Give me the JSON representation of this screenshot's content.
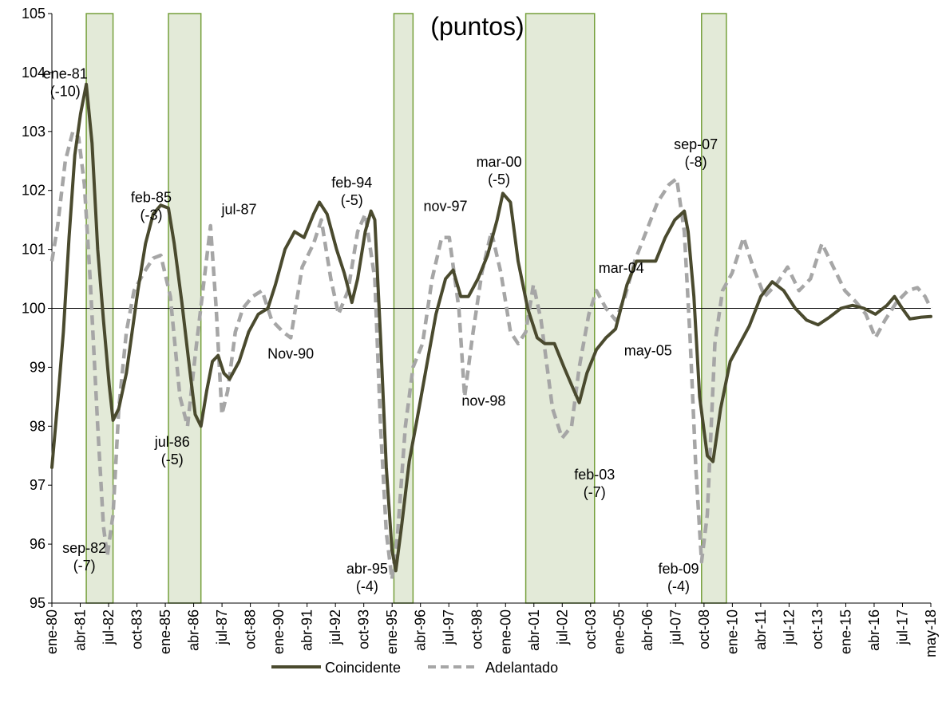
{
  "chart_data": {
    "type": "line",
    "title": "(puntos)",
    "ylim": [
      95,
      105
    ],
    "yticks": [
      "95",
      "96",
      "97",
      "98",
      "99",
      "100",
      "101",
      "102",
      "103",
      "104",
      "105"
    ],
    "x_start": "1980-01",
    "x_end": "2018-05",
    "xtick_labels": [
      "ene-80",
      "abr-81",
      "jul-82",
      "oct-83",
      "ene-85",
      "abr-86",
      "jul-87",
      "oct-88",
      "ene-90",
      "abr-91",
      "jul-92",
      "oct-93",
      "ene-95",
      "abr-96",
      "jul-97",
      "oct-98",
      "ene-00",
      "abr-01",
      "jul-02",
      "oct-03",
      "ene-05",
      "abr-06",
      "jul-07",
      "oct-08",
      "ene-10",
      "abr-11",
      "jul-12",
      "oct-13",
      "ene-15",
      "abr-16",
      "jul-17",
      "may-18"
    ],
    "reference_line": 100,
    "recession_bands": [
      [
        "1981-07",
        "1982-09"
      ],
      [
        "1985-02",
        "1986-07"
      ],
      [
        "1994-12",
        "1995-10"
      ],
      [
        "2000-09",
        "2003-09"
      ],
      [
        "2008-05",
        "2009-06"
      ]
    ],
    "colors": {
      "coincidente": "#4a4a2e",
      "adelantado": "#a6a6a6",
      "band_fill": "#e3ead8",
      "band_stroke": "#76a03c"
    },
    "series": [
      {
        "name": "Coincidente",
        "style": "solid",
        "points": [
          [
            "1980-01",
            97.3
          ],
          [
            "1980-04",
            98.4
          ],
          [
            "1980-07",
            99.6
          ],
          [
            "1980-10",
            101.2
          ],
          [
            "1981-01",
            102.6
          ],
          [
            "1981-04",
            103.3
          ],
          [
            "1981-07",
            103.8
          ],
          [
            "1981-10",
            102.8
          ],
          [
            "1982-01",
            101.0
          ],
          [
            "1982-04",
            99.8
          ],
          [
            "1982-07",
            98.7
          ],
          [
            "1982-09",
            98.1
          ],
          [
            "1982-12",
            98.3
          ],
          [
            "1983-04",
            98.9
          ],
          [
            "1983-07",
            99.6
          ],
          [
            "1983-10",
            100.3
          ],
          [
            "1984-02",
            101.1
          ],
          [
            "1984-06",
            101.6
          ],
          [
            "1984-10",
            101.75
          ],
          [
            "1985-02",
            101.7
          ],
          [
            "1985-05",
            101.1
          ],
          [
            "1985-09",
            100.1
          ],
          [
            "1986-01",
            99.0
          ],
          [
            "1986-04",
            98.2
          ],
          [
            "1986-07",
            98.0
          ],
          [
            "1986-10",
            98.6
          ],
          [
            "1987-01",
            99.1
          ],
          [
            "1987-04",
            99.2
          ],
          [
            "1987-07",
            98.9
          ],
          [
            "1987-10",
            98.8
          ],
          [
            "1988-03",
            99.1
          ],
          [
            "1988-08",
            99.6
          ],
          [
            "1989-01",
            99.9
          ],
          [
            "1989-06",
            100.0
          ],
          [
            "1989-10",
            100.4
          ],
          [
            "1990-03",
            101.0
          ],
          [
            "1990-08",
            101.3
          ],
          [
            "1991-01",
            101.2
          ],
          [
            "1991-06",
            101.6
          ],
          [
            "1991-09",
            101.8
          ],
          [
            "1992-01",
            101.6
          ],
          [
            "1992-06",
            101.0
          ],
          [
            "1992-10",
            100.6
          ],
          [
            "1993-02",
            100.1
          ],
          [
            "1993-05",
            100.5
          ],
          [
            "1993-09",
            101.3
          ],
          [
            "1993-12",
            101.65
          ],
          [
            "1994-02",
            101.5
          ],
          [
            "1994-05",
            99.5
          ],
          [
            "1994-08",
            97.3
          ],
          [
            "1994-11",
            95.9
          ],
          [
            "1995-01",
            95.55
          ],
          [
            "1995-04",
            96.3
          ],
          [
            "1995-08",
            97.4
          ],
          [
            "1995-12",
            98.1
          ],
          [
            "1996-05",
            99.0
          ],
          [
            "1996-10",
            99.9
          ],
          [
            "1997-03",
            100.5
          ],
          [
            "1997-07",
            100.65
          ],
          [
            "1997-11",
            100.2
          ],
          [
            "1998-03",
            100.2
          ],
          [
            "1998-08",
            100.5
          ],
          [
            "1999-01",
            100.9
          ],
          [
            "1999-06",
            101.5
          ],
          [
            "1999-09",
            101.95
          ],
          [
            "2000-01",
            101.8
          ],
          [
            "2000-05",
            100.8
          ],
          [
            "2000-10",
            100.0
          ],
          [
            "2001-03",
            99.5
          ],
          [
            "2001-07",
            99.4
          ],
          [
            "2001-12",
            99.4
          ],
          [
            "2002-05",
            99.0
          ],
          [
            "2002-09",
            98.7
          ],
          [
            "2003-01",
            98.4
          ],
          [
            "2003-05",
            98.9
          ],
          [
            "2003-10",
            99.3
          ],
          [
            "2004-03",
            99.5
          ],
          [
            "2004-08",
            99.65
          ],
          [
            "2005-02",
            100.4
          ],
          [
            "2005-07",
            100.8
          ],
          [
            "2005-12",
            100.8
          ],
          [
            "2006-05",
            100.8
          ],
          [
            "2006-10",
            101.2
          ],
          [
            "2007-03",
            101.5
          ],
          [
            "2007-08",
            101.65
          ],
          [
            "2007-10",
            101.3
          ],
          [
            "2008-01",
            100.2
          ],
          [
            "2008-04",
            98.5
          ],
          [
            "2008-08",
            97.5
          ],
          [
            "2008-11",
            97.4
          ],
          [
            "2009-03",
            98.3
          ],
          [
            "2009-08",
            99.1
          ],
          [
            "2010-01",
            99.4
          ],
          [
            "2010-06",
            99.7
          ],
          [
            "2010-12",
            100.2
          ],
          [
            "2011-06",
            100.45
          ],
          [
            "2011-12",
            100.3
          ],
          [
            "2012-06",
            100.0
          ],
          [
            "2012-12",
            99.8
          ],
          [
            "2013-06",
            99.72
          ],
          [
            "2013-12",
            99.85
          ],
          [
            "2014-06",
            100.0
          ],
          [
            "2014-12",
            100.05
          ],
          [
            "2015-06",
            100.0
          ],
          [
            "2015-12",
            99.9
          ],
          [
            "2016-06",
            100.05
          ],
          [
            "2016-10",
            100.2
          ],
          [
            "2017-02",
            100.0
          ],
          [
            "2017-06",
            99.82
          ],
          [
            "2017-12",
            99.85
          ],
          [
            "2018-05",
            99.86
          ]
        ]
      },
      {
        "name": "Adelantado",
        "style": "dashed",
        "points": [
          [
            "1980-01",
            100.8
          ],
          [
            "1980-04",
            101.4
          ],
          [
            "1980-08",
            102.5
          ],
          [
            "1980-12",
            103.0
          ],
          [
            "1981-03",
            102.9
          ],
          [
            "1981-06",
            102.1
          ],
          [
            "1981-09",
            100.5
          ],
          [
            "1982-01",
            98.0
          ],
          [
            "1982-04",
            96.3
          ],
          [
            "1982-06",
            95.8
          ],
          [
            "1982-09",
            96.5
          ],
          [
            "1982-12",
            98.3
          ],
          [
            "1983-04",
            99.6
          ],
          [
            "1983-08",
            100.3
          ],
          [
            "1984-01",
            100.6
          ],
          [
            "1984-06",
            100.85
          ],
          [
            "1984-10",
            100.9
          ],
          [
            "1985-03",
            100.2
          ],
          [
            "1985-08",
            98.5
          ],
          [
            "1985-12",
            98.0
          ],
          [
            "1986-04",
            99.2
          ],
          [
            "1986-08",
            100.3
          ],
          [
            "1986-12",
            101.4
          ],
          [
            "1987-03",
            100.0
          ],
          [
            "1987-06",
            98.2
          ],
          [
            "1987-09",
            98.6
          ],
          [
            "1988-01",
            99.6
          ],
          [
            "1988-05",
            100.0
          ],
          [
            "1988-10",
            100.2
          ],
          [
            "1989-03",
            100.3
          ],
          [
            "1989-08",
            99.8
          ],
          [
            "1990-02",
            99.6
          ],
          [
            "1990-06",
            99.5
          ],
          [
            "1990-12",
            100.7
          ],
          [
            "1991-06",
            101.1
          ],
          [
            "1991-10",
            101.5
          ],
          [
            "1992-03",
            100.5
          ],
          [
            "1992-07",
            99.9
          ],
          [
            "1992-12",
            100.3
          ],
          [
            "1993-05",
            101.3
          ],
          [
            "1993-09",
            101.6
          ],
          [
            "1994-02",
            100.5
          ],
          [
            "1994-05",
            98.0
          ],
          [
            "1994-08",
            96.2
          ],
          [
            "1994-11",
            95.4
          ],
          [
            "1995-02",
            96.2
          ],
          [
            "1995-06",
            98.0
          ],
          [
            "1995-10",
            99.0
          ],
          [
            "1996-03",
            99.4
          ],
          [
            "1996-08",
            100.5
          ],
          [
            "1997-01",
            101.2
          ],
          [
            "1997-05",
            101.2
          ],
          [
            "1997-10",
            100.0
          ],
          [
            "1998-01",
            98.5
          ],
          [
            "1998-05",
            99.5
          ],
          [
            "1998-10",
            100.6
          ],
          [
            "1999-03",
            101.3
          ],
          [
            "1999-08",
            100.6
          ],
          [
            "2000-01",
            99.6
          ],
          [
            "2000-05",
            99.4
          ],
          [
            "2000-09",
            99.6
          ],
          [
            "2001-01",
            100.4
          ],
          [
            "2001-05",
            99.8
          ],
          [
            "2001-11",
            98.3
          ],
          [
            "2002-04",
            97.8
          ],
          [
            "2002-09",
            98.0
          ],
          [
            "2003-01",
            99.0
          ],
          [
            "2003-06",
            99.9
          ],
          [
            "2003-10",
            100.3
          ],
          [
            "2004-03",
            100.0
          ],
          [
            "2004-08",
            99.8
          ],
          [
            "2005-01",
            100.2
          ],
          [
            "2005-06",
            100.8
          ],
          [
            "2005-12",
            101.3
          ],
          [
            "2006-06",
            101.8
          ],
          [
            "2006-12",
            102.1
          ],
          [
            "2007-04",
            102.2
          ],
          [
            "2007-08",
            101.3
          ],
          [
            "2007-11",
            99.5
          ],
          [
            "2008-02",
            97.3
          ],
          [
            "2008-05",
            95.7
          ],
          [
            "2008-08",
            96.5
          ],
          [
            "2008-12",
            99.4
          ],
          [
            "2009-04",
            100.3
          ],
          [
            "2009-09",
            100.6
          ],
          [
            "2010-03",
            101.2
          ],
          [
            "2010-08",
            100.7
          ],
          [
            "2011-02",
            100.2
          ],
          [
            "2011-08",
            100.4
          ],
          [
            "2012-02",
            100.7
          ],
          [
            "2012-08",
            100.3
          ],
          [
            "2013-02",
            100.5
          ],
          [
            "2013-08",
            101.1
          ],
          [
            "2014-02",
            100.7
          ],
          [
            "2014-08",
            100.3
          ],
          [
            "2015-02",
            100.1
          ],
          [
            "2015-07",
            99.9
          ],
          [
            "2015-12",
            99.5
          ],
          [
            "2016-05",
            99.8
          ],
          [
            "2016-11",
            100.1
          ],
          [
            "2017-05",
            100.3
          ],
          [
            "2017-10",
            100.35
          ],
          [
            "2018-02",
            100.2
          ],
          [
            "2018-05",
            100.0
          ]
        ]
      }
    ],
    "annotations": [
      {
        "text": [
          "ene-81",
          "(-10)"
        ],
        "at": [
          "1980-08",
          103.9
        ],
        "anchor": "middle"
      },
      {
        "text": [
          "sep-82",
          "(-7)"
        ],
        "at": [
          "1981-06",
          95.85
        ],
        "anchor": "middle"
      },
      {
        "text": [
          "feb-85",
          "(-3)"
        ],
        "at": [
          "1984-05",
          101.8
        ],
        "anchor": "middle"
      },
      {
        "text": [
          "jul-86",
          "(-5)"
        ],
        "at": [
          "1985-04",
          97.65
        ],
        "anchor": "middle"
      },
      {
        "text": [
          "jul-87"
        ],
        "at": [
          "1988-03",
          101.6
        ],
        "anchor": "middle"
      },
      {
        "text": [
          "Nov-90"
        ],
        "at": [
          "1990-06",
          99.15
        ],
        "anchor": "middle"
      },
      {
        "text": [
          "feb-94",
          "(-5)"
        ],
        "at": [
          "1993-02",
          102.05
        ],
        "anchor": "middle"
      },
      {
        "text": [
          "abr-95",
          "(-4)"
        ],
        "at": [
          "1993-10",
          95.5
        ],
        "anchor": "middle"
      },
      {
        "text": [
          "nov-97"
        ],
        "at": [
          "1997-03",
          101.65
        ],
        "anchor": "middle"
      },
      {
        "text": [
          "nov-98"
        ],
        "at": [
          "1998-11",
          98.35
        ],
        "anchor": "middle"
      },
      {
        "text": [
          "mar-00",
          "(-5)"
        ],
        "at": [
          "1999-07",
          102.4
        ],
        "anchor": "middle"
      },
      {
        "text": [
          "feb-03",
          "(-7)"
        ],
        "at": [
          "2003-09",
          97.1
        ],
        "anchor": "middle"
      },
      {
        "text": [
          "mar-04"
        ],
        "at": [
          "2004-11",
          100.6
        ],
        "anchor": "middle"
      },
      {
        "text": [
          "may-05"
        ],
        "at": [
          "2006-01",
          99.2
        ],
        "anchor": "middle"
      },
      {
        "text": [
          "sep-07",
          "(-8)"
        ],
        "at": [
          "2008-02",
          102.7
        ],
        "anchor": "middle"
      },
      {
        "text": [
          "feb-09",
          "(-4)"
        ],
        "at": [
          "2007-05",
          95.5
        ],
        "anchor": "middle"
      }
    ]
  },
  "legend": {
    "position": "bottom",
    "items": [
      {
        "label": "Coincidente",
        "style": "solid"
      },
      {
        "label": "Adelantado",
        "style": "dashed"
      }
    ]
  }
}
